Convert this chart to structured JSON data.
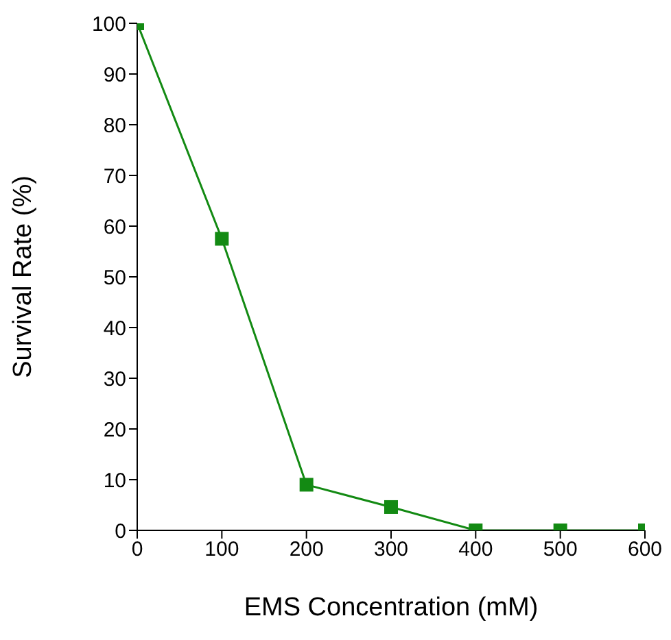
{
  "chart_data": {
    "type": "line",
    "xlabel": "EMS Concentration (mM)",
    "ylabel": "Survival Rate (%)",
    "x": [
      0,
      100,
      200,
      300,
      400,
      500,
      600
    ],
    "series": [
      {
        "color": "#138a13",
        "values": [
          100,
          57.5,
          9,
          4.6,
          0,
          0,
          0
        ]
      }
    ],
    "xlim": [
      0,
      600
    ],
    "xticks": [
      0,
      100,
      200,
      300,
      400,
      500,
      600
    ],
    "ylim": [
      0,
      100
    ],
    "yticks": [
      0,
      10,
      20,
      30,
      40,
      50,
      60,
      70,
      80,
      90,
      100
    ],
    "marker": "square",
    "line_style": "solid",
    "grid": false,
    "legend": false
  }
}
